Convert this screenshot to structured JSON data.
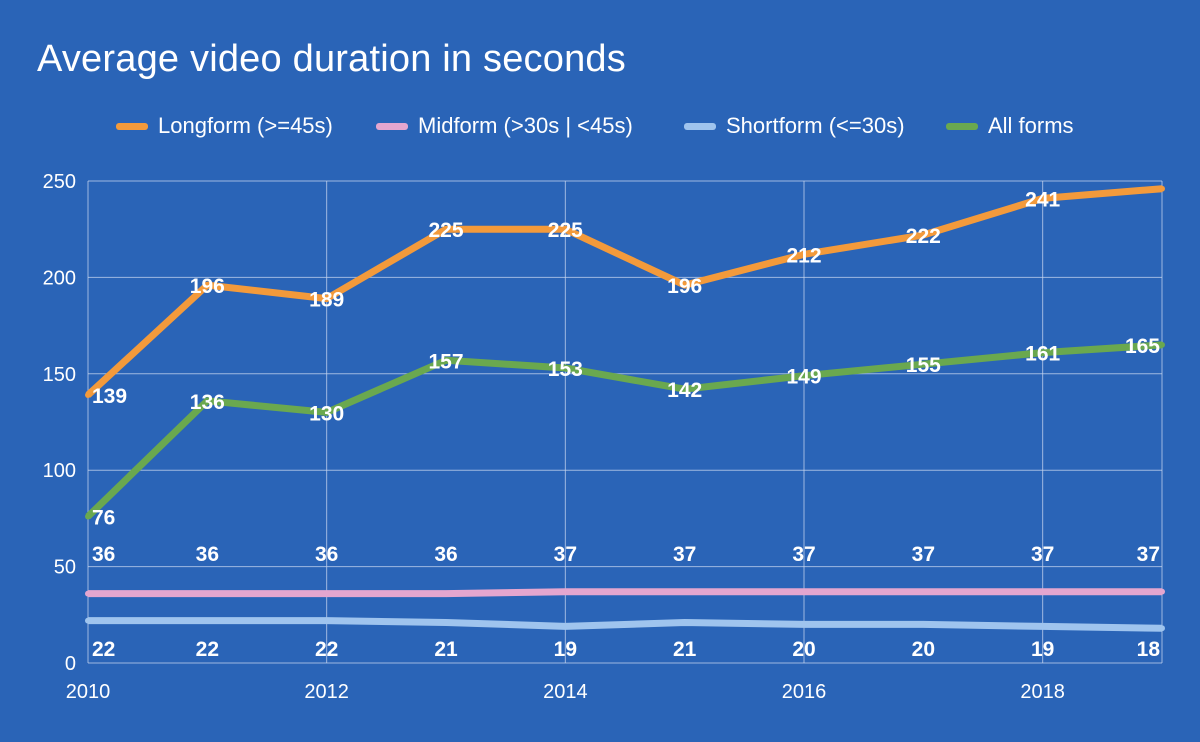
{
  "chart_data": {
    "type": "line",
    "title": "Average video duration in seconds",
    "xlabel": "",
    "ylabel": "",
    "x": [
      2010,
      2011,
      2012,
      2013,
      2014,
      2015,
      2016,
      2017,
      2018,
      2019
    ],
    "xticks": [
      "2010",
      "2012",
      "2014",
      "2016",
      "2018"
    ],
    "xlim": [
      2010,
      2019
    ],
    "yticks": [
      "0",
      "50",
      "100",
      "150",
      "200",
      "250"
    ],
    "ylim": [
      0,
      250
    ],
    "grid": true,
    "legend_position": "top",
    "series": [
      {
        "name": "Longform (>=45s)",
        "color": "#f39a3b",
        "values": [
          139,
          196,
          189,
          225,
          225,
          196,
          212,
          222,
          241,
          246
        ],
        "labels": [
          "139",
          "196",
          "189",
          "225",
          "225",
          "196",
          "212",
          "222",
          "241",
          ""
        ]
      },
      {
        "name": "Midform (>30s | <45s)",
        "color": "#e4a6cf",
        "values": [
          36,
          36,
          36,
          36,
          37,
          37,
          37,
          37,
          37,
          37
        ],
        "labels": [
          "36",
          "36",
          "36",
          "36",
          "37",
          "37",
          "37",
          "37",
          "37",
          "37"
        ]
      },
      {
        "name": "Shortform (<=30s)",
        "color": "#9fc4ee",
        "values": [
          22,
          22,
          22,
          21,
          19,
          21,
          20,
          20,
          19,
          18
        ],
        "labels": [
          "22",
          "22",
          "22",
          "21",
          "19",
          "21",
          "20",
          "20",
          "19",
          "18"
        ]
      },
      {
        "name": "All forms",
        "color": "#6aa84f",
        "values": [
          76,
          136,
          130,
          157,
          153,
          142,
          149,
          155,
          161,
          165
        ],
        "labels": [
          "76",
          "136",
          "130",
          "157",
          "153",
          "142",
          "149",
          "155",
          "161",
          "165"
        ]
      }
    ]
  }
}
